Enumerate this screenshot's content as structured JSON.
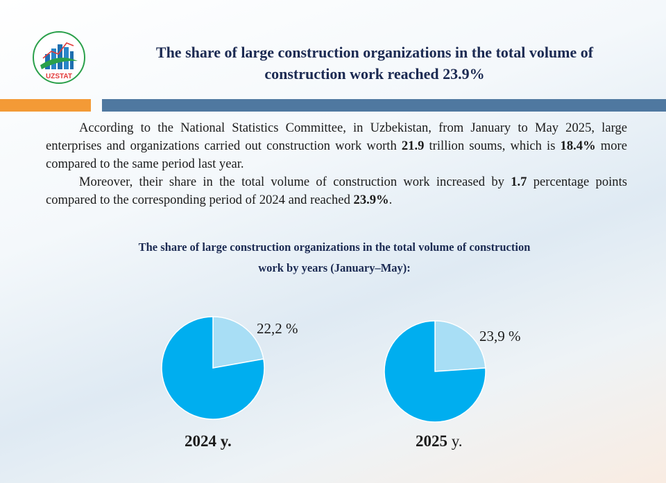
{
  "header": {
    "logo_text": "UZSTAT",
    "title_line1": "The share of large construction organizations in the total volume of",
    "title_line2": "construction work reached 23.9%"
  },
  "paragraphs": [
    {
      "t1": "According to the National Statistics Committee, in Uzbekistan, from January to May 2025, large enterprises and organizations carried out construction work worth ",
      "b1": "21.9",
      "t2": " trillion soums, which is ",
      "b2": "18.4%",
      "t3": " more compared to the same period last year."
    },
    {
      "t1": "Moreover, their share in the total volume of construction work increased by ",
      "b1": "1.7",
      "t2": " percentage points compared to the corresponding period of 2024 and reached ",
      "b2": "23.9%",
      "t3": "."
    }
  ],
  "chart_data": {
    "type": "pie",
    "title": "The share of large construction  organizations  in the total volume of construction work by years (January–May):",
    "title_line1": "The share of large construction  organizations  in the total volume of construction",
    "title_line2": "work by years (January–May):",
    "charts": [
      {
        "year_label": "2024",
        "year_suffix": "y.",
        "values": [
          22.2,
          77.8
        ],
        "share_label": "22,2 %",
        "colors": [
          "#a8def5",
          "#00aeef"
        ]
      },
      {
        "year_label": "2025",
        "year_suffix": "y.",
        "values": [
          23.9,
          76.1
        ],
        "share_label": "23,9 %",
        "colors": [
          "#a8def5",
          "#00aeef"
        ]
      }
    ]
  }
}
